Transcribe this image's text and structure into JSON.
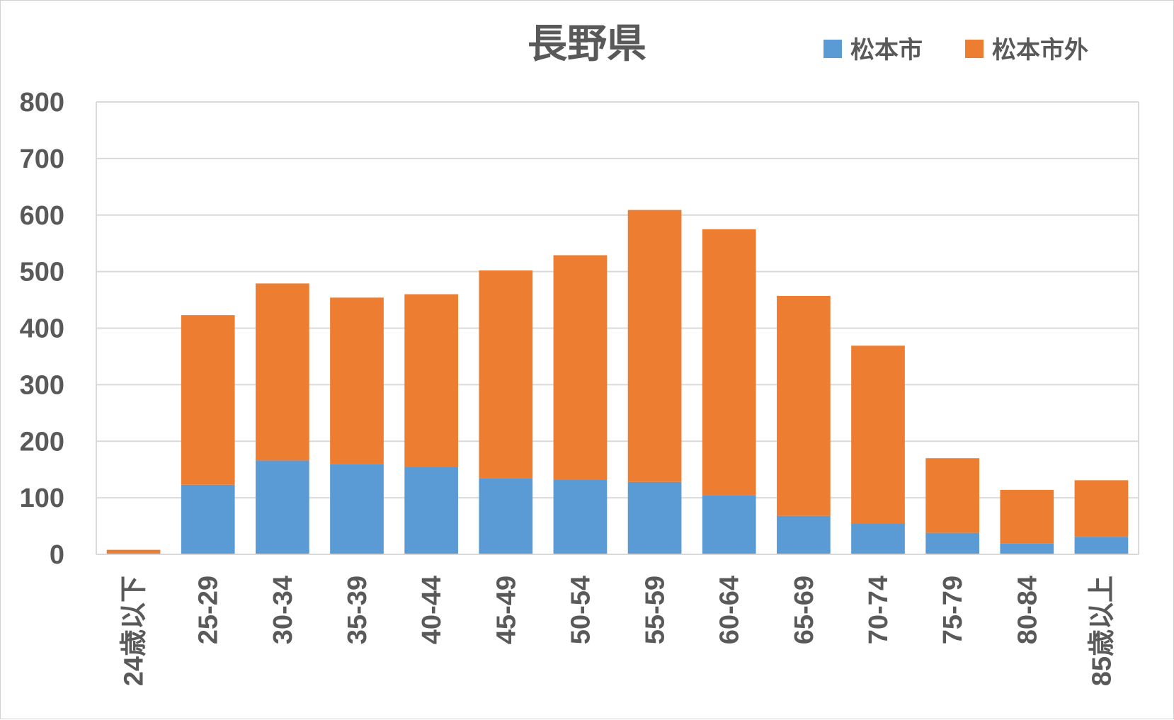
{
  "chart_data": {
    "type": "bar",
    "stacked": true,
    "title": "長野県",
    "categories": [
      "24歳以下",
      "25-29",
      "30-34",
      "35-39",
      "40-44",
      "45-49",
      "50-54",
      "55-59",
      "60-64",
      "65-69",
      "70-74",
      "75-79",
      "80-84",
      "85歳以上"
    ],
    "series": [
      {
        "name": "松本市",
        "color": "#5B9BD5",
        "values": [
          0,
          123,
          166,
          160,
          154,
          135,
          132,
          128,
          105,
          68,
          55,
          38,
          19,
          31
        ]
      },
      {
        "name": "松本市外",
        "color": "#ED7D31",
        "values": [
          8,
          300,
          313,
          294,
          306,
          367,
          397,
          481,
          470,
          389,
          314,
          132,
          95,
          100
        ]
      }
    ],
    "ylim": [
      0,
      800
    ],
    "yticks": [
      0,
      100,
      200,
      300,
      400,
      500,
      600,
      700,
      800
    ],
    "grid": true,
    "legend_position": "top-right",
    "xlabel": "",
    "ylabel": ""
  }
}
